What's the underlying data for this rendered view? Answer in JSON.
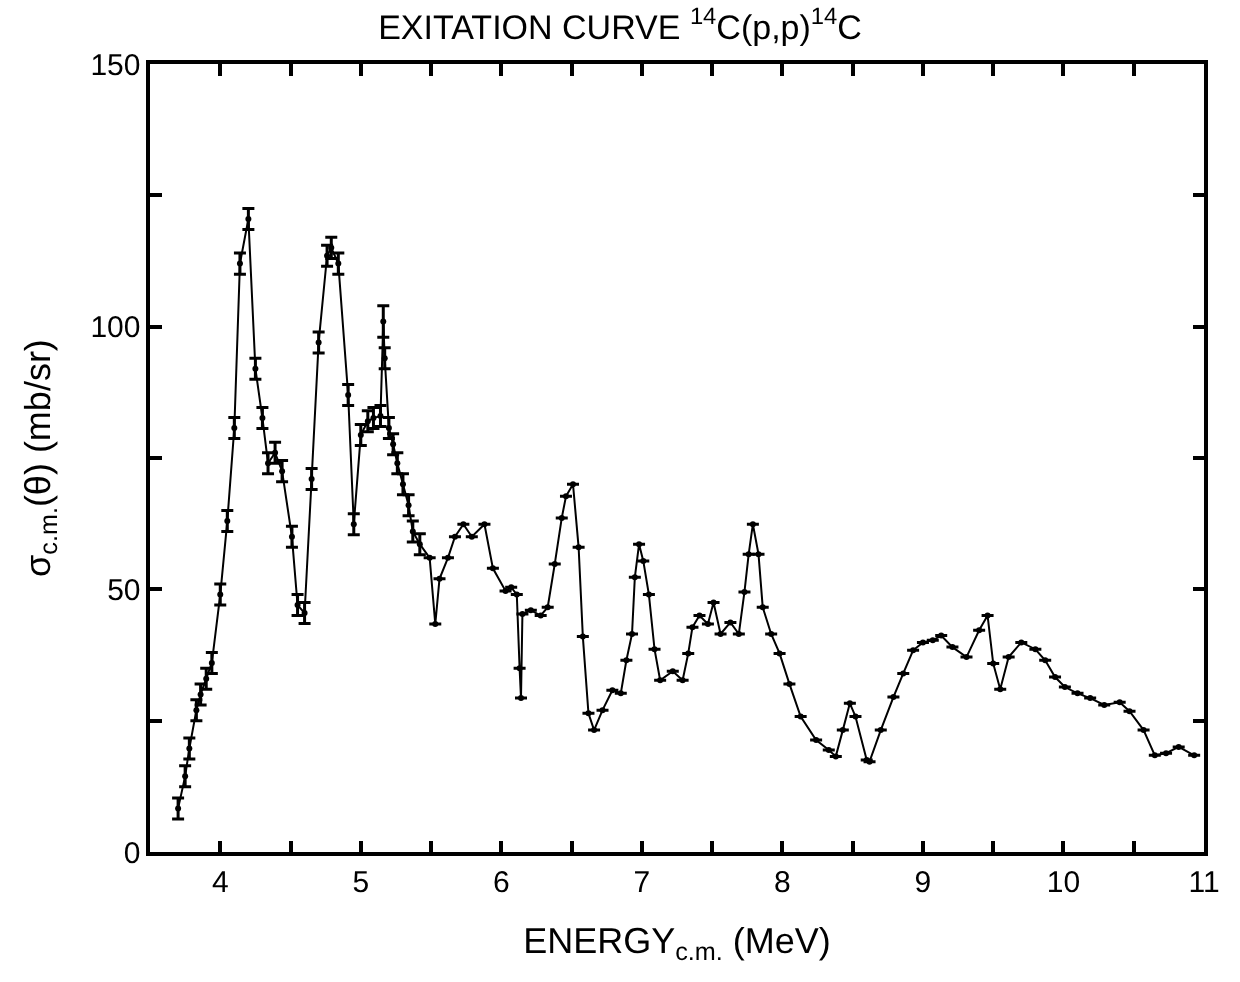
{
  "chart_data": {
    "type": "line",
    "title": "EXITATION CURVE $^{14}$C(p,p)$^{14}$C",
    "xlabel": "ENERGY$_{c.m.}$ (MeV)",
    "ylabel": "σ$_{c.m.}$(θ) (mb/sr)",
    "xlim": [
      3.5,
      11
    ],
    "ylim": [
      0,
      150
    ],
    "xticks": [
      4,
      {
        "value": 4.5,
        "label": null
      },
      5,
      {
        "value": 5.5,
        "label": null
      },
      6,
      {
        "value": 6.5,
        "label": null
      },
      7,
      {
        "value": 7.5,
        "label": null
      },
      8,
      {
        "value": 8.5,
        "label": null
      },
      9,
      {
        "value": 9.5,
        "label": null
      },
      10,
      {
        "value": 10.5,
        "label": null
      },
      11
    ],
    "yticks": [
      0,
      {
        "value": 25,
        "label": null
      },
      50,
      {
        "value": 75,
        "label": null
      },
      100,
      {
        "value": 125,
        "label": null
      },
      150
    ],
    "marker": "circle",
    "line_style": "solid",
    "series": [
      {
        "color": "#000000",
        "x": [
          3.7,
          3.75,
          3.78,
          3.83,
          3.86,
          3.9,
          3.94,
          4.0,
          4.05,
          4.1,
          4.14,
          4.2,
          4.25,
          4.3,
          4.34,
          4.39,
          4.44,
          4.51,
          4.55,
          4.6,
          4.65,
          4.7,
          4.76,
          4.79,
          4.84,
          4.91,
          4.95,
          5.0,
          5.05,
          5.09,
          5.14,
          5.16,
          5.17,
          5.2,
          5.23,
          5.26,
          5.3,
          5.34,
          5.37,
          5.42,
          5.49,
          5.53,
          5.56,
          5.62,
          5.67,
          5.73,
          5.79,
          5.88,
          5.94,
          6.03,
          6.07,
          6.11,
          6.13,
          6.14,
          6.15,
          6.21,
          6.28,
          6.33,
          6.38,
          6.43,
          6.46,
          6.51,
          6.55,
          6.58,
          6.62,
          6.66,
          6.72,
          6.79,
          6.85,
          6.89,
          6.93,
          6.95,
          6.98,
          7.01,
          7.05,
          7.09,
          7.13,
          7.22,
          7.29,
          7.33,
          7.36,
          7.41,
          7.47,
          7.51,
          7.56,
          7.63,
          7.69,
          7.73,
          7.76,
          7.79,
          7.83,
          7.86,
          7.92,
          7.98,
          8.05,
          8.13,
          8.24,
          8.33,
          8.38,
          8.43,
          8.48,
          8.52,
          8.6,
          8.62,
          8.7,
          8.79,
          8.86,
          8.93,
          9.0,
          9.07,
          9.13,
          9.21,
          9.31,
          9.4,
          9.46,
          9.5,
          9.55,
          9.61,
          9.7,
          9.8,
          9.87,
          9.94,
          10.01,
          10.1,
          10.19,
          10.29,
          10.4,
          10.47,
          10.57,
          10.65,
          10.73,
          10.82,
          10.93
        ],
        "values": [
          8.3,
          14.4,
          19.7,
          27,
          30,
          33,
          36,
          49,
          63,
          80.7,
          112,
          120.5,
          92,
          82.6,
          74,
          76,
          72.5,
          60,
          47,
          45.5,
          71,
          97,
          113.5,
          115,
          112,
          87,
          62.4,
          79.4,
          82,
          82.6,
          83,
          101,
          94,
          80.7,
          77.6,
          74,
          70,
          66,
          61,
          58.6,
          56,
          43.4,
          52,
          56,
          60,
          62.4,
          60,
          62.4,
          54,
          49.7,
          50.4,
          49,
          35,
          29.3,
          45.3,
          46,
          45,
          46.6,
          54.8,
          63.6,
          67.7,
          70,
          58,
          41,
          26.4,
          23.2,
          27,
          30.8,
          30.2,
          36.5,
          41.5,
          52.3,
          58.6,
          55.4,
          49,
          38.6,
          32.7,
          34.4,
          32.7,
          37.8,
          42.8,
          45,
          43.4,
          47.5,
          41.5,
          43.7,
          41.5,
          49.5,
          56.7,
          62.4,
          56.7,
          46.6,
          41.5,
          37.8,
          32,
          25.8,
          21.3,
          19.4,
          18.2,
          23.2,
          28.3,
          25.8,
          17.5,
          17.2,
          23.2,
          29.5,
          34,
          38.4,
          39.9,
          40.3,
          41.2,
          39,
          37.1,
          42.2,
          45,
          35.9,
          31,
          37.1,
          39.9,
          38.6,
          36.5,
          33.3,
          31.4,
          30.2,
          29.3,
          28,
          28.5,
          26.8,
          23.2,
          18.4,
          18.8,
          20,
          18.4
        ],
        "errors": [
          2,
          2,
          2,
          2,
          2,
          2,
          2,
          2,
          2,
          2,
          2,
          2,
          2,
          2,
          2,
          2,
          2,
          2,
          2,
          2,
          2,
          2,
          2,
          2,
          2,
          2,
          2,
          2,
          2,
          2,
          2,
          3,
          2,
          2,
          2,
          2,
          2,
          2,
          2,
          2,
          null,
          null,
          null,
          null,
          null,
          null,
          null,
          null,
          null,
          null,
          null,
          null,
          null,
          null,
          null,
          null,
          null,
          null,
          null,
          null,
          null,
          null,
          null,
          null,
          null,
          null,
          null,
          null,
          null,
          null,
          null,
          null,
          null,
          null,
          null,
          null,
          null,
          null,
          null,
          null,
          null,
          null,
          null,
          null,
          null,
          null,
          null,
          null,
          null,
          null,
          null,
          null,
          null,
          null,
          null,
          null,
          null,
          null,
          null,
          null,
          null,
          null,
          null,
          null,
          null,
          null,
          null,
          null,
          null,
          null,
          null,
          null,
          null,
          null,
          null,
          null,
          null,
          null,
          null,
          null,
          null,
          null,
          null,
          null,
          null,
          null,
          null,
          null,
          null,
          null,
          null,
          null,
          null
        ]
      }
    ]
  }
}
